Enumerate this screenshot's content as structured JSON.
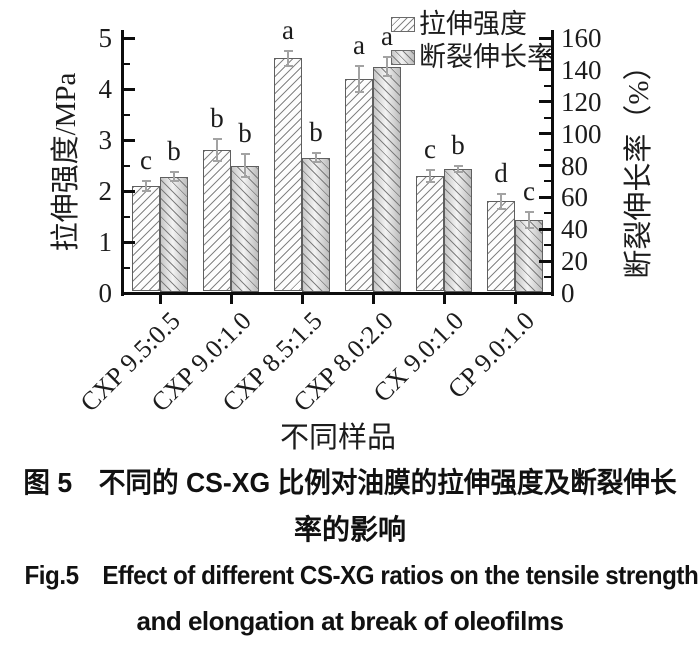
{
  "figure": {
    "caption_cn_line1": "图 5 不同的 CS-XG 比例对油膜的拉伸强度及断裂伸长",
    "caption_cn_line2": "率的影响",
    "caption_en_line1": "Fig.5 Effect of different CS-XG ratios on the tensile strength",
    "caption_en_line2": "and elongation at break of oleofilms"
  },
  "chart_data": {
    "type": "bar",
    "title": "",
    "xlabel": "不同样品",
    "ylabel_left": "拉伸强度/MPa",
    "ylabel_right": "断裂伸长率（%）",
    "categories": [
      "CXP 9.5:0.5",
      "CXP 9.0:1.0",
      "CXP 8.5:1.5",
      "CXP 8.0:2.0",
      "CX 9.0:1.0",
      "CP 9.0:1.0"
    ],
    "series": [
      {
        "name": "拉伸强度",
        "axis": "left",
        "unit": "MPa",
        "hatch": "/",
        "values": [
          2.1,
          2.8,
          4.6,
          4.2,
          2.3,
          1.8
        ],
        "errors": [
          0.1,
          0.22,
          0.15,
          0.25,
          0.12,
          0.15
        ],
        "sig_letters": [
          "c",
          "b",
          "a",
          "a",
          "c",
          "d"
        ]
      },
      {
        "name": "断裂伸长率",
        "axis": "right",
        "unit": "%",
        "hatch": "\\",
        "values": [
          73,
          80,
          85,
          142,
          78,
          46
        ],
        "errors": [
          3,
          7,
          3,
          6,
          2,
          5
        ],
        "sig_letters": [
          "b",
          "b",
          "b",
          "a",
          "b",
          "c"
        ]
      }
    ],
    "left_axis": {
      "min": 0,
      "max": 5,
      "ticks": [
        0,
        1,
        2,
        3,
        4,
        5
      ],
      "minor_step": 0.5
    },
    "right_axis": {
      "min": 0,
      "max": 160,
      "ticks": [
        0,
        20,
        40,
        60,
        80,
        100,
        120,
        140,
        160
      ],
      "minor_step": 10
    },
    "legend": {
      "position": "top-right"
    },
    "grid": false,
    "colors": {
      "axis": "#0d0d0d",
      "text": "#1c1c1c",
      "hatch": "#7d7d7d",
      "tensile_fill": "#fdfdfd",
      "elongation_fill": "#d9d9d9",
      "error_bar": "#a3a3a3",
      "background": "#ffffff"
    }
  }
}
